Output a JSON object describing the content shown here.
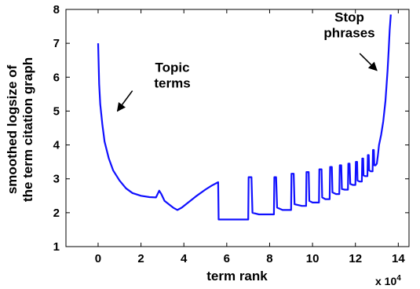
{
  "chart_data": {
    "type": "line",
    "title": "",
    "xlabel": "term rank",
    "ylabel": [
      "smoothed logsize of",
      "the term citation graph"
    ],
    "x_scale_prefix": "x 10",
    "x_scale_exponent": "4",
    "xlim": [
      -1.5,
      14.5
    ],
    "ylim": [
      1,
      8
    ],
    "x_ticks": [
      0,
      2,
      4,
      6,
      8,
      10,
      12,
      14
    ],
    "y_ticks": [
      1,
      2,
      3,
      4,
      5,
      6,
      7,
      8
    ],
    "grid": false,
    "legend": "none",
    "series_color": "#1010ff",
    "annotations": [
      {
        "lines": [
          "Topic",
          "terms"
        ],
        "arrow_from": [
          1.6,
          5.6
        ],
        "arrow_to": [
          0.9,
          5.0
        ]
      },
      {
        "lines": [
          "Stop",
          "phrases"
        ],
        "arrow_from": [
          12.2,
          6.7
        ],
        "arrow_to": [
          13.0,
          6.2
        ]
      }
    ],
    "series": [
      {
        "x": [
          0,
          0.05,
          0.1,
          0.2,
          0.3,
          0.5,
          0.7,
          1.0,
          1.3,
          1.6,
          2.0,
          2.4,
          2.7,
          2.85,
          2.95,
          3.1,
          3.3,
          3.5,
          3.7,
          3.9,
          4.2,
          4.6,
          5.0,
          5.3,
          5.6,
          5.62,
          5.9,
          6.5,
          7.0,
          7.02,
          7.15,
          7.2,
          7.5,
          8.0,
          8.2,
          8.22,
          8.3,
          8.35,
          8.6,
          9.0,
          9.02,
          9.12,
          9.16,
          9.5,
          9.7,
          9.72,
          9.82,
          9.85,
          10.0,
          10.3,
          10.32,
          10.42,
          10.45,
          10.6,
          10.8,
          10.82,
          10.9,
          10.93,
          11.1,
          11.25,
          11.27,
          11.34,
          11.37,
          11.5,
          11.65,
          11.67,
          11.73,
          11.76,
          11.88,
          12.0,
          12.02,
          12.08,
          12.1,
          12.2,
          12.3,
          12.32,
          12.36,
          12.38,
          12.46,
          12.56,
          12.58,
          12.62,
          12.64,
          12.72,
          12.8,
          12.82,
          12.86,
          12.88,
          12.94,
          13.0,
          13.05,
          13.1,
          13.2,
          13.3,
          13.4,
          13.5,
          13.55,
          13.6,
          13.65
        ],
        "y": [
          7.0,
          5.8,
          5.2,
          4.6,
          4.1,
          3.6,
          3.25,
          2.95,
          2.72,
          2.58,
          2.5,
          2.46,
          2.45,
          2.65,
          2.55,
          2.35,
          2.25,
          2.15,
          2.08,
          2.15,
          2.3,
          2.5,
          2.68,
          2.8,
          2.9,
          1.8,
          1.8,
          1.8,
          1.8,
          3.05,
          3.05,
          2.0,
          1.95,
          1.95,
          1.95,
          3.05,
          3.05,
          2.15,
          2.08,
          2.08,
          3.15,
          3.15,
          2.25,
          2.2,
          2.2,
          3.2,
          3.2,
          2.35,
          2.3,
          2.3,
          3.28,
          3.28,
          2.45,
          2.4,
          2.4,
          3.35,
          3.35,
          2.6,
          2.55,
          2.55,
          3.4,
          3.4,
          2.7,
          2.68,
          2.68,
          3.45,
          3.45,
          2.85,
          2.82,
          2.82,
          3.5,
          3.5,
          2.95,
          2.92,
          2.92,
          3.6,
          3.6,
          3.1,
          3.08,
          3.08,
          3.7,
          3.7,
          3.25,
          3.22,
          3.22,
          3.85,
          3.85,
          3.4,
          3.4,
          3.45,
          3.7,
          4.0,
          4.3,
          4.7,
          5.3,
          6.2,
          6.8,
          7.4,
          7.85
        ]
      }
    ]
  }
}
